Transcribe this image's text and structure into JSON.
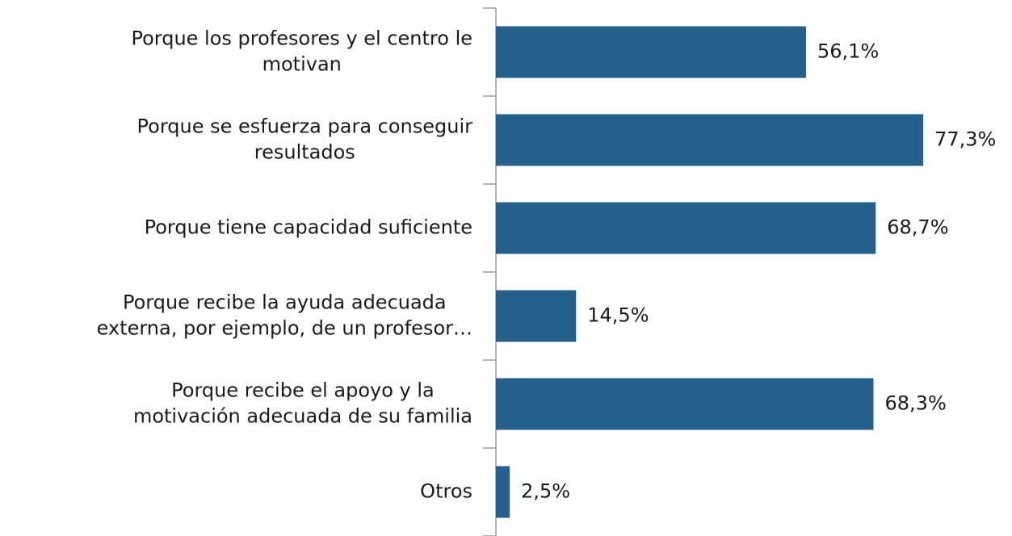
{
  "chart_data": {
    "type": "barh",
    "categories": [
      "Porque los profesores y el centro le motivan",
      "Porque se esfuerza para conseguir resultados",
      "Porque tiene capacidad suficiente",
      "Porque recibe la ayuda adecuada externa, por ejemplo, de un profesor…",
      "Porque recibe el apoyo y la motivación adecuada de su familia",
      "Otros"
    ],
    "values": [
      56.1,
      77.3,
      68.7,
      14.5,
      68.3,
      2.5
    ],
    "value_labels": [
      "56,1%",
      "77,3%",
      "68,7%",
      "14,5%",
      "68,3%",
      "2,5%"
    ],
    "color": "#246089"
  }
}
